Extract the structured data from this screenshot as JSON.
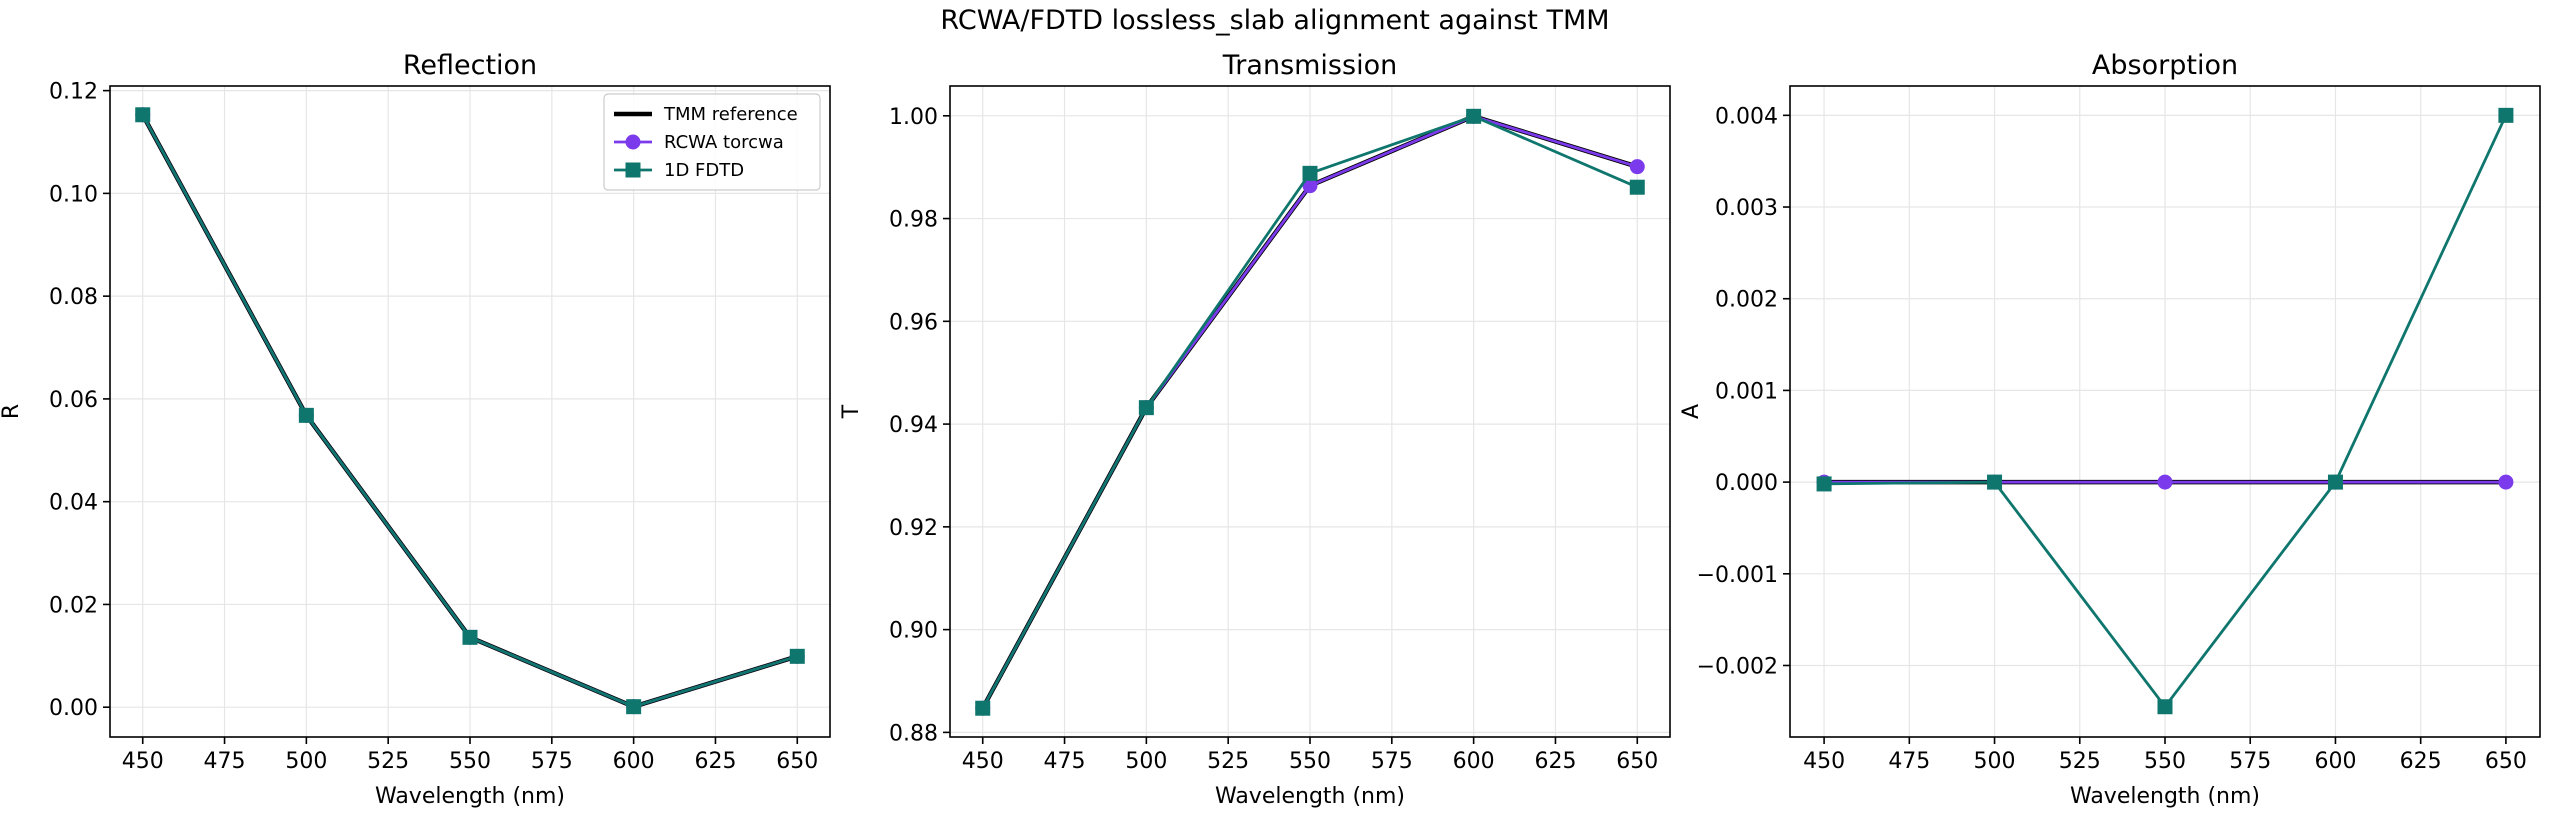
{
  "figure": {
    "suptitle": "RCWA/FDTD lossless_slab alignment against TMM"
  },
  "colors": {
    "tmm": "#000000",
    "rcwa": "#7c3aed",
    "fdtd": "#0f766e",
    "grid": "#e6e6e6"
  },
  "chart_data": [
    {
      "type": "line",
      "title": "Reflection",
      "xlabel": "Wavelength (nm)",
      "ylabel": "R",
      "xlim": [
        440,
        660
      ],
      "ylim": [
        -0.0058,
        0.1209
      ],
      "xticks": [
        450,
        475,
        500,
        525,
        550,
        575,
        600,
        625,
        650
      ],
      "xtick_labels": [
        "450",
        "475",
        "500",
        "525",
        "550",
        "575",
        "600",
        "625",
        "650"
      ],
      "yticks": [
        0.0,
        0.02,
        0.04,
        0.06,
        0.08,
        0.1,
        0.12
      ],
      "ytick_labels": [
        "0.00",
        "0.02",
        "0.04",
        "0.06",
        "0.08",
        "0.10",
        "0.12"
      ],
      "grid": true,
      "legend": "top-right",
      "x": [
        450,
        500,
        550,
        600,
        650
      ],
      "series": [
        {
          "name": "TMM reference",
          "color": "#000000",
          "marker": "none",
          "values": [
            0.1153,
            0.0568,
            0.0136,
            0.0001,
            0.0099
          ]
        },
        {
          "name": "RCWA torcwa",
          "color": "#7c3aed",
          "marker": "circle",
          "values": [
            0.1153,
            0.0568,
            0.0136,
            0.0001,
            0.0099
          ]
        },
        {
          "name": "1D FDTD",
          "color": "#0f766e",
          "marker": "square",
          "values": [
            0.1153,
            0.0568,
            0.0136,
            0.0001,
            0.0099
          ]
        }
      ]
    },
    {
      "type": "line",
      "title": "Transmission",
      "xlabel": "Wavelength (nm)",
      "ylabel": "T",
      "xlim": [
        440,
        660
      ],
      "ylim": [
        0.8791,
        1.0058
      ],
      "xticks": [
        450,
        475,
        500,
        525,
        550,
        575,
        600,
        625,
        650
      ],
      "xtick_labels": [
        "450",
        "475",
        "500",
        "525",
        "550",
        "575",
        "600",
        "625",
        "650"
      ],
      "yticks": [
        0.88,
        0.9,
        0.92,
        0.94,
        0.96,
        0.98,
        1.0
      ],
      "ytick_labels": [
        "0.88",
        "0.90",
        "0.92",
        "0.94",
        "0.96",
        "0.98",
        "1.00"
      ],
      "grid": true,
      "x": [
        450,
        500,
        550,
        600,
        650
      ],
      "series": [
        {
          "name": "TMM reference",
          "color": "#000000",
          "marker": "none",
          "values": [
            0.8847,
            0.9432,
            0.9864,
            0.9999,
            0.9901
          ]
        },
        {
          "name": "RCWA torcwa",
          "color": "#7c3aed",
          "marker": "circle",
          "values": [
            0.8847,
            0.9432,
            0.9864,
            0.9999,
            0.9901
          ]
        },
        {
          "name": "1D FDTD",
          "color": "#0f766e",
          "marker": "square",
          "values": [
            0.8847,
            0.9432,
            0.9888,
            0.9999,
            0.9861
          ]
        }
      ]
    },
    {
      "type": "line",
      "title": "Absorption",
      "xlabel": "Wavelength (nm)",
      "ylabel": "A",
      "xlim": [
        440,
        660
      ],
      "ylim": [
        -0.00278,
        0.00432
      ],
      "xticks": [
        450,
        475,
        500,
        525,
        550,
        575,
        600,
        625,
        650
      ],
      "xtick_labels": [
        "450",
        "475",
        "500",
        "525",
        "550",
        "575",
        "600",
        "625",
        "650"
      ],
      "yticks": [
        -0.002,
        -0.001,
        0.0,
        0.001,
        0.002,
        0.003,
        0.004
      ],
      "ytick_labels": [
        "−0.002",
        "−0.001",
        "0.000",
        "0.001",
        "0.002",
        "0.003",
        "0.004"
      ],
      "grid": true,
      "x": [
        450,
        500,
        550,
        600,
        650
      ],
      "series": [
        {
          "name": "TMM reference",
          "color": "#000000",
          "marker": "none",
          "values": [
            0.0,
            0.0,
            0.0,
            0.0,
            0.0
          ]
        },
        {
          "name": "RCWA torcwa",
          "color": "#7c3aed",
          "marker": "circle",
          "values": [
            0.0,
            0.0,
            0.0,
            0.0,
            0.0
          ]
        },
        {
          "name": "1D FDTD",
          "color": "#0f766e",
          "marker": "square",
          "values": [
            -2e-05,
            0.0,
            -0.00245,
            0.0,
            0.004
          ]
        }
      ]
    }
  ]
}
